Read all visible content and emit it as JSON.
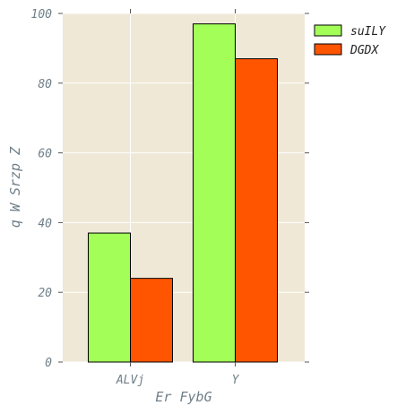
{
  "chart_data": {
    "type": "bar",
    "categories": [
      "ALVj",
      "Y"
    ],
    "series": [
      {
        "name": "suILY",
        "values": [
          37,
          97
        ],
        "color": "#a3ff57"
      },
      {
        "name": "DGDX",
        "values": [
          24,
          87
        ],
        "color": "#ff5500"
      }
    ],
    "xlabel": "Er  FybG",
    "ylabel": "q W Srzp Z",
    "ylim": [
      0,
      100
    ],
    "yticks": [
      0,
      20,
      40,
      60,
      80,
      100
    ],
    "grid": true,
    "legend_position": "outside-top-right",
    "background_color": "#efe8d6",
    "bar_edge_color": "#000000"
  }
}
